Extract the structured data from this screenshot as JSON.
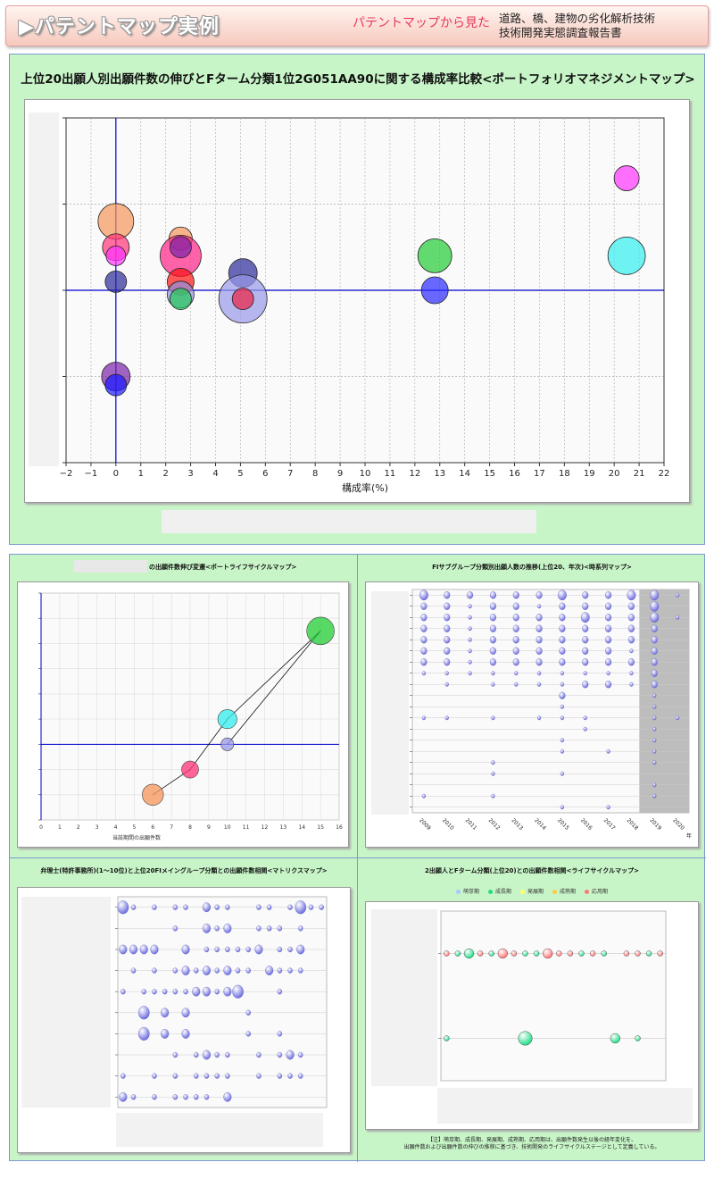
{
  "header": {
    "title": "▶パテントマップ実例",
    "subtitle": "パテントマップから見た",
    "report_line1": "道路、橋、建物の劣化解析技術",
    "report_line2": "技術開発実態調査報告書"
  },
  "colors": {
    "panel_bg": "#c8f5c8",
    "accent_line": "#0000cc",
    "subtitle": "#e8385a"
  },
  "main_chart": {
    "title": "上位20出願人別出願件数の伸びとFターム分類1位2G051AA90に関する構成率比較<ポートフォリオマネジメントマップ>",
    "chart_data": {
      "type": "scatter",
      "title": "上位20出願人別出願件数の伸びとFターム分類1位2G051AA90に関する構成率比較<ポートフォリオマネジメントマップ>",
      "xlabel": "構成率(%)",
      "xlim": [
        -2,
        22
      ],
      "xticks": [
        "−2",
        "−1",
        "0",
        "1",
        "2",
        "3",
        "4",
        "5",
        "6",
        "7",
        "8",
        "9",
        "10",
        "11",
        "12",
        "13",
        "14",
        "15",
        "16",
        "17",
        "18",
        "19",
        "20",
        "21",
        "22"
      ],
      "ylim": [
        -2,
        2
      ],
      "grid": true,
      "points": [
        {
          "x": 0,
          "y": 0.8,
          "r": 1.0,
          "color": "#f5955a"
        },
        {
          "x": 0,
          "y": 0.5,
          "r": 0.75,
          "color": "#ff3377"
        },
        {
          "x": 0,
          "y": 0.4,
          "r": 0.55,
          "color": "#ff33ff"
        },
        {
          "x": 0,
          "y": 0.1,
          "r": 0.6,
          "color": "#2a2a9a"
        },
        {
          "x": 0,
          "y": -1.0,
          "r": 0.8,
          "color": "#7a22aa"
        },
        {
          "x": 0,
          "y": -1.1,
          "r": 0.6,
          "color": "#1a1aff"
        },
        {
          "x": 2.6,
          "y": 0.6,
          "r": 0.65,
          "color": "#f5955a"
        },
        {
          "x": 2.6,
          "y": 0.4,
          "r": 1.15,
          "color": "#ff2288"
        },
        {
          "x": 2.6,
          "y": 0.5,
          "r": 0.6,
          "color": "#7a22aa"
        },
        {
          "x": 2.6,
          "y": 0.1,
          "r": 0.75,
          "color": "#ff1111"
        },
        {
          "x": 2.6,
          "y": -0.05,
          "r": 0.75,
          "color": "#9090e0"
        },
        {
          "x": 2.6,
          "y": -0.1,
          "r": 0.6,
          "color": "#22cc55"
        },
        {
          "x": 5.1,
          "y": 0.2,
          "r": 0.8,
          "color": "#2a2a9a"
        },
        {
          "x": 5.1,
          "y": -0.1,
          "r": 1.35,
          "color": "#9898e8"
        },
        {
          "x": 5.1,
          "y": -0.1,
          "r": 0.6,
          "color": "#ee2244"
        },
        {
          "x": 12.8,
          "y": 0.4,
          "r": 0.95,
          "color": "#22cc33"
        },
        {
          "x": 12.8,
          "y": 0.0,
          "r": 0.75,
          "color": "#2a2aff"
        },
        {
          "x": 20.5,
          "y": 1.3,
          "r": 0.7,
          "color": "#ff33ff"
        },
        {
          "x": 20.5,
          "y": 0.4,
          "r": 1.05,
          "color": "#33eeee"
        }
      ]
    }
  },
  "lifecycle_chart": {
    "title": "の出願件数伸び変遷<ポートライフサイクルマップ>",
    "chart_data": {
      "type": "scatter",
      "title": "の出願件数伸び変遷<ポートライフサイクルマップ>",
      "xlabel": "当該期間の出願件数",
      "xlim": [
        0,
        16
      ],
      "xticks": [
        "0",
        "1",
        "2",
        "3",
        "4",
        "5",
        "6",
        "7",
        "8",
        "9",
        "10",
        "11",
        "12",
        "13",
        "14",
        "15",
        "16"
      ],
      "ylim": [
        -3,
        6
      ],
      "path": [
        [
          6,
          -2
        ],
        [
          8,
          -1
        ],
        [
          10,
          1
        ],
        [
          15,
          4.5
        ],
        [
          10,
          0
        ]
      ],
      "points": [
        {
          "x": 6,
          "y": -2,
          "r": 1.0,
          "color": "#f5955a"
        },
        {
          "x": 8,
          "y": -1,
          "r": 0.8,
          "color": "#ff3377"
        },
        {
          "x": 10,
          "y": 1,
          "r": 0.9,
          "color": "#33eeee"
        },
        {
          "x": 10,
          "y": 0,
          "r": 0.6,
          "color": "#9898e8"
        },
        {
          "x": 15,
          "y": 4.5,
          "r": 1.3,
          "color": "#22cc33"
        }
      ]
    }
  },
  "timeseries_chart": {
    "title": "FIサブグループ分類別出願人数の推移(上位20、年次)<時系列マップ>",
    "chart_data": {
      "type": "scatter",
      "title": "FIサブグループ分類別出願人数の推移(上位20、年次)<時系列マップ>",
      "x": [
        "2009",
        "2010",
        "2011",
        "2012",
        "2013",
        "2014",
        "2015",
        "2016",
        "2017",
        "2018",
        "2019",
        "2020"
      ],
      "x_unit": "年",
      "rows": 20,
      "sizes": [
        [
          3,
          2,
          2,
          2,
          2,
          2,
          3,
          2,
          2,
          3,
          3,
          1
        ],
        [
          2,
          2,
          1,
          2,
          2,
          1,
          2,
          2,
          2,
          2,
          3,
          0
        ],
        [
          2,
          2,
          1,
          2,
          2,
          2,
          2,
          3,
          2,
          2,
          3,
          1
        ],
        [
          2,
          2,
          1,
          2,
          2,
          2,
          2,
          2,
          2,
          2,
          2,
          0
        ],
        [
          2,
          2,
          1,
          2,
          2,
          2,
          2,
          2,
          2,
          2,
          2,
          0
        ],
        [
          2,
          2,
          1,
          2,
          2,
          2,
          2,
          2,
          2,
          1,
          2,
          0
        ],
        [
          2,
          2,
          1,
          2,
          2,
          2,
          2,
          2,
          2,
          2,
          2,
          0
        ],
        [
          1,
          1,
          1,
          1,
          1,
          1,
          1,
          1,
          1,
          1,
          2,
          0
        ],
        [
          0,
          1,
          0,
          1,
          1,
          1,
          1,
          2,
          2,
          1,
          2,
          0
        ],
        [
          0,
          0,
          0,
          0,
          0,
          0,
          2,
          0,
          0,
          0,
          1,
          0
        ],
        [
          0,
          0,
          0,
          0,
          0,
          0,
          1,
          0,
          0,
          0,
          1,
          0
        ],
        [
          1,
          1,
          0,
          1,
          0,
          1,
          1,
          1,
          0,
          0,
          1,
          1
        ],
        [
          0,
          0,
          0,
          0,
          0,
          0,
          0,
          1,
          0,
          0,
          1,
          0
        ],
        [
          0,
          0,
          0,
          0,
          0,
          0,
          1,
          0,
          0,
          0,
          1,
          0
        ],
        [
          0,
          0,
          0,
          0,
          0,
          0,
          1,
          0,
          1,
          0,
          1,
          0
        ],
        [
          0,
          0,
          0,
          1,
          0,
          0,
          0,
          0,
          0,
          0,
          1,
          0
        ],
        [
          0,
          0,
          0,
          1,
          0,
          0,
          1,
          0,
          0,
          0,
          0,
          0
        ],
        [
          0,
          0,
          0,
          0,
          0,
          0,
          0,
          0,
          0,
          0,
          1,
          0
        ],
        [
          1,
          0,
          0,
          1,
          0,
          0,
          0,
          0,
          0,
          0,
          1,
          0
        ],
        [
          0,
          0,
          0,
          0,
          0,
          0,
          1,
          0,
          1,
          0,
          0,
          0
        ]
      ],
      "shaded_from": "2019"
    }
  },
  "matrix_chart": {
    "title": "弁理士(特許事務所)(1～10位)と上位20FIメイングループ分類との出願件数相関<マトリクスマップ>",
    "chart_data": {
      "type": "scatter",
      "title": "弁理士(特許事務所)(1～10位)と上位20FIメイングループ分類との出願件数相関<マトリクスマップ>",
      "rows": 10,
      "cols": 20,
      "sizes": [
        [
          3,
          1,
          0,
          1,
          0,
          1,
          1,
          0,
          2,
          1,
          1,
          0,
          0,
          1,
          1,
          0,
          1,
          3,
          1,
          1
        ],
        [
          0,
          0,
          0,
          0,
          0,
          1,
          0,
          0,
          2,
          1,
          2,
          0,
          0,
          1,
          1,
          1,
          0,
          1,
          0,
          0
        ],
        [
          2,
          2,
          2,
          2,
          0,
          0,
          2,
          0,
          1,
          1,
          1,
          1,
          1,
          2,
          0,
          1,
          1,
          2,
          0,
          0
        ],
        [
          0,
          1,
          0,
          1,
          0,
          1,
          2,
          1,
          2,
          1,
          2,
          1,
          1,
          0,
          2,
          1,
          1,
          1,
          0,
          0
        ],
        [
          1,
          0,
          1,
          1,
          1,
          1,
          1,
          2,
          2,
          1,
          2,
          3,
          0,
          0,
          0,
          1,
          0,
          0,
          0,
          0
        ],
        [
          0,
          0,
          3,
          0,
          2,
          0,
          2,
          0,
          0,
          0,
          0,
          0,
          1,
          0,
          0,
          0,
          0,
          0,
          0,
          0
        ],
        [
          0,
          0,
          3,
          0,
          2,
          0,
          2,
          0,
          0,
          0,
          0,
          0,
          1,
          0,
          0,
          1,
          0,
          0,
          0,
          0
        ],
        [
          0,
          0,
          0,
          0,
          0,
          1,
          0,
          1,
          2,
          1,
          1,
          0,
          0,
          1,
          0,
          1,
          2,
          1,
          0,
          0
        ],
        [
          1,
          0,
          0,
          1,
          0,
          1,
          0,
          1,
          1,
          1,
          1,
          0,
          0,
          1,
          0,
          1,
          1,
          1,
          0,
          0
        ],
        [
          2,
          1,
          0,
          1,
          0,
          1,
          1,
          1,
          1,
          0,
          2,
          0,
          0,
          0,
          0,
          0,
          0,
          0,
          0,
          0
        ]
      ]
    }
  },
  "bubble_lifecycle_chart": {
    "title": "2出願人とFターム分類(上位20)との出願件数相関<ライフサイクルマップ>",
    "legend": [
      {
        "label": "萌芽期",
        "color": "#a8c8ff"
      },
      {
        "label": "成長期",
        "color": "#22dd88"
      },
      {
        "label": "発展期",
        "color": "#ffff66"
      },
      {
        "label": "成熟期",
        "color": "#ffcc44"
      },
      {
        "label": "応用期",
        "color": "#ff7777"
      }
    ],
    "chart_data": {
      "type": "scatter",
      "title": "2出願人とFターム分類(上位20)との出願件数相関<ライフサイクルマップ>",
      "rows": 2,
      "cols": 20,
      "row1": [
        [
          1,
          "#ff7777"
        ],
        [
          1,
          "#22dd88"
        ],
        [
          2,
          "#22dd88"
        ],
        [
          1,
          "#ff7777"
        ],
        [
          1,
          "#22dd88"
        ],
        [
          2,
          "#ff7777"
        ],
        [
          1,
          "#ff7777"
        ],
        [
          1,
          "#22dd88"
        ],
        [
          1,
          "#22dd88"
        ],
        [
          2,
          "#ff7777"
        ],
        [
          1,
          "#ff7777"
        ],
        [
          1,
          "#ff7777"
        ],
        [
          1,
          "#22dd88"
        ],
        [
          1,
          "#ff7777"
        ],
        [
          1,
          "#22dd88"
        ],
        [
          0,
          ""
        ],
        [
          1,
          "#ff7777"
        ],
        [
          1,
          "#ff7777"
        ],
        [
          1,
          "#22dd88"
        ],
        [
          1,
          "#ff7777"
        ]
      ],
      "row2": [
        [
          1,
          "#22dd88"
        ],
        [
          0,
          ""
        ],
        [
          0,
          ""
        ],
        [
          0,
          ""
        ],
        [
          0,
          ""
        ],
        [
          0,
          ""
        ],
        [
          0,
          ""
        ],
        [
          3,
          "#22dd88"
        ],
        [
          0,
          ""
        ],
        [
          0,
          ""
        ],
        [
          0,
          ""
        ],
        [
          0,
          ""
        ],
        [
          0,
          ""
        ],
        [
          0,
          ""
        ],
        [
          0,
          ""
        ],
        [
          2,
          "#22dd88"
        ],
        [
          0,
          ""
        ],
        [
          1,
          "#22dd88"
        ],
        [
          0,
          ""
        ],
        [
          0,
          ""
        ]
      ]
    },
    "note_line1": "【注】萌芽期、成長期、発展期、成熟期、応用期は、出願件数発生以後の経年変化を、",
    "note_line2": "出願件数および出願件数の伸びの推移に基づき、技術開発のライフサイクルステージとして定義している。"
  }
}
